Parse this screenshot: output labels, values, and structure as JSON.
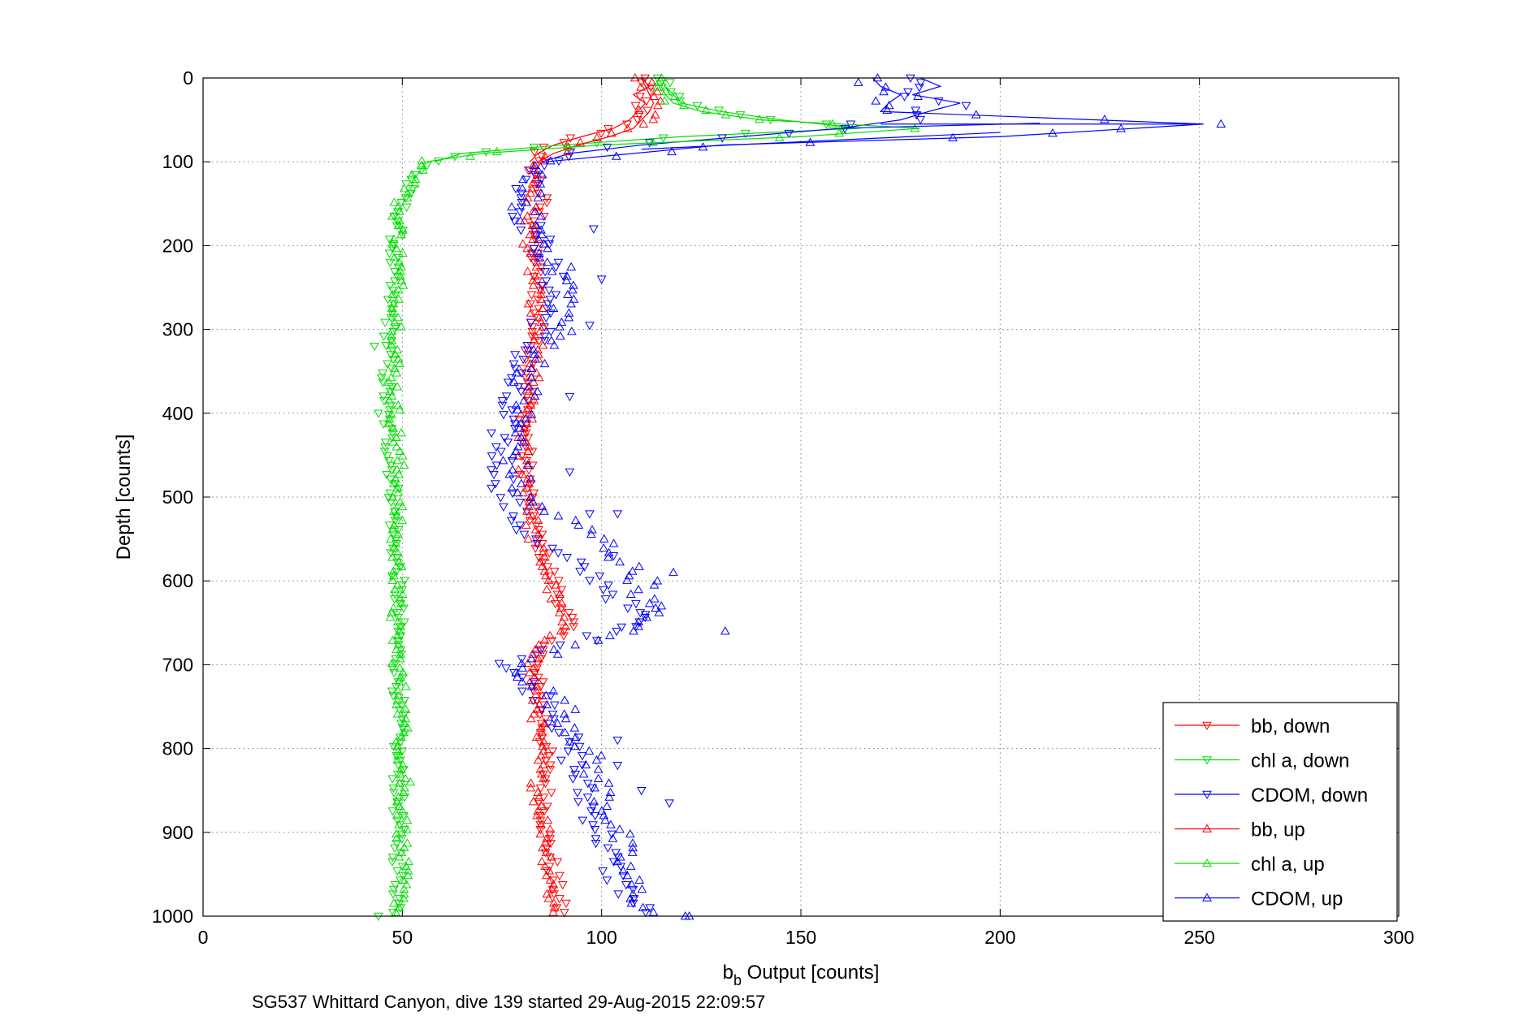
{
  "chart_data": {
    "type": "scatter",
    "xlabel_main": "b",
    "xlabel_sub": "b",
    "xlabel_rest": " Output [counts]",
    "ylabel": "Depth [counts]",
    "footer": "SG537 Whittard Canyon, dive 139 started 29-Aug-2015 22:09:57",
    "xlim": [
      0,
      300
    ],
    "ylim": [
      0,
      1000
    ],
    "y_reversed": true,
    "grid": true,
    "legend_position": "bottom-right",
    "xticks": [
      "0",
      "50",
      "100",
      "150",
      "200",
      "250",
      "300"
    ],
    "yticks": [
      "0",
      "100",
      "200",
      "300",
      "400",
      "500",
      "600",
      "700",
      "800",
      "900",
      "1000"
    ],
    "series": [
      {
        "name": "bb, down",
        "color": "#ff0000",
        "marker": "triangle-down",
        "line_until_depth": 100,
        "points": [
          [
            110,
            0
          ],
          [
            112,
            10
          ],
          [
            108,
            20
          ],
          [
            111,
            30
          ],
          [
            109,
            40
          ],
          [
            107,
            50
          ],
          [
            103,
            60
          ],
          [
            95,
            70
          ],
          [
            88,
            80
          ],
          [
            84,
            90
          ],
          [
            82,
            100
          ],
          [
            84,
            120
          ],
          [
            85,
            150
          ],
          [
            83,
            200
          ],
          [
            84,
            250
          ],
          [
            83,
            300
          ],
          [
            82,
            350
          ],
          [
            81,
            400
          ],
          [
            81,
            450
          ],
          [
            82,
            500
          ],
          [
            84,
            550
          ],
          [
            88,
            600
          ],
          [
            92,
            650
          ],
          [
            83,
            700
          ],
          [
            85,
            750
          ],
          [
            86,
            800
          ],
          [
            86,
            850
          ],
          [
            86,
            900
          ],
          [
            88,
            950
          ],
          [
            90,
            1000
          ]
        ]
      },
      {
        "name": "chl a, down",
        "color": "#00dd00",
        "marker": "triangle-down",
        "line_until_depth": 100,
        "points": [
          [
            115,
            0
          ],
          [
            116,
            10
          ],
          [
            118,
            20
          ],
          [
            120,
            30
          ],
          [
            130,
            40
          ],
          [
            145,
            50
          ],
          [
            165,
            60
          ],
          [
            120,
            70
          ],
          [
            90,
            80
          ],
          [
            65,
            90
          ],
          [
            58,
            100
          ],
          [
            52,
            120
          ],
          [
            50,
            150
          ],
          [
            48,
            200
          ],
          [
            47,
            250
          ],
          [
            47,
            300
          ],
          [
            46,
            350
          ],
          [
            46,
            400
          ],
          [
            47,
            450
          ],
          [
            48,
            500
          ],
          [
            48,
            550
          ],
          [
            49,
            600
          ],
          [
            49,
            650
          ],
          [
            49,
            700
          ],
          [
            49,
            750
          ],
          [
            49,
            800
          ],
          [
            49,
            850
          ],
          [
            49,
            900
          ],
          [
            49,
            950
          ],
          [
            49,
            1000
          ]
        ]
      },
      {
        "name": "CDOM, down",
        "color": "#0000ff",
        "marker": "triangle-down",
        "line_until_depth": 100,
        "points": [
          [
            180,
            0
          ],
          [
            185,
            10
          ],
          [
            178,
            20
          ],
          [
            190,
            30
          ],
          [
            182,
            40
          ],
          [
            175,
            50
          ],
          [
            160,
            60
          ],
          [
            135,
            70
          ],
          [
            110,
            80
          ],
          [
            92,
            90
          ],
          [
            85,
            100
          ],
          [
            82,
            130
          ],
          [
            80,
            160
          ],
          [
            85,
            200
          ],
          [
            88,
            250
          ],
          [
            85,
            300
          ],
          [
            78,
            350
          ],
          [
            75,
            400
          ],
          [
            75,
            450
          ],
          [
            76,
            500
          ],
          [
            82,
            550
          ],
          [
            100,
            600
          ],
          [
            110,
            650
          ],
          [
            76,
            700
          ],
          [
            88,
            750
          ],
          [
            92,
            800
          ],
          [
            95,
            850
          ],
          [
            100,
            900
          ],
          [
            103,
            950
          ],
          [
            111,
            1000
          ]
        ]
      },
      {
        "name": "bb, up",
        "color": "#ff0000",
        "marker": "triangle-up",
        "line_until_depth": 100,
        "points": [
          [
            88,
            1000
          ],
          [
            87,
            950
          ],
          [
            86,
            900
          ],
          [
            84,
            850
          ],
          [
            84,
            800
          ],
          [
            84,
            750
          ],
          [
            82,
            700
          ],
          [
            90,
            650
          ],
          [
            87,
            600
          ],
          [
            83,
            550
          ],
          [
            82,
            500
          ],
          [
            80,
            450
          ],
          [
            81,
            400
          ],
          [
            83,
            350
          ],
          [
            84,
            300
          ],
          [
            83,
            250
          ],
          [
            82,
            200
          ],
          [
            82,
            150
          ],
          [
            84,
            100
          ],
          [
            88,
            90
          ],
          [
            94,
            80
          ],
          [
            102,
            70
          ],
          [
            108,
            60
          ],
          [
            110,
            50
          ],
          [
            112,
            40
          ],
          [
            113,
            30
          ],
          [
            112,
            20
          ],
          [
            111,
            10
          ],
          [
            110,
            0
          ]
        ]
      },
      {
        "name": "chl a, up",
        "color": "#00dd00",
        "marker": "triangle-up",
        "line_until_depth": 100,
        "points": [
          [
            49,
            1000
          ],
          [
            50,
            950
          ],
          [
            50,
            900
          ],
          [
            50,
            850
          ],
          [
            50,
            800
          ],
          [
            50,
            750
          ],
          [
            49,
            700
          ],
          [
            48,
            650
          ],
          [
            49,
            600
          ],
          [
            48,
            550
          ],
          [
            49,
            500
          ],
          [
            49,
            450
          ],
          [
            48,
            400
          ],
          [
            48,
            350
          ],
          [
            49,
            300
          ],
          [
            49,
            250
          ],
          [
            49,
            200
          ],
          [
            49,
            150
          ],
          [
            56,
            100
          ],
          [
            70,
            90
          ],
          [
            100,
            80
          ],
          [
            150,
            70
          ],
          [
            180,
            60
          ],
          [
            140,
            50
          ],
          [
            125,
            40
          ],
          [
            118,
            30
          ],
          [
            116,
            20
          ],
          [
            115,
            10
          ],
          [
            116,
            0
          ]
        ]
      },
      {
        "name": "CDOM, up",
        "color": "#0000ff",
        "marker": "triangle-up",
        "line_until_depth": 100,
        "points": [
          [
            112,
            1000
          ],
          [
            106,
            950
          ],
          [
            104,
            900
          ],
          [
            100,
            850
          ],
          [
            96,
            800
          ],
          [
            90,
            750
          ],
          [
            78,
            700
          ],
          [
            112,
            650
          ],
          [
            110,
            600
          ],
          [
            100,
            550
          ],
          [
            80,
            500
          ],
          [
            78,
            450
          ],
          [
            80,
            400
          ],
          [
            82,
            350
          ],
          [
            90,
            300
          ],
          [
            92,
            250
          ],
          [
            86,
            200
          ],
          [
            80,
            150
          ],
          [
            86,
            100
          ],
          [
            130,
            80
          ],
          [
            200,
            70
          ],
          [
            251,
            55
          ],
          [
            170,
            40
          ],
          [
            172,
            30
          ],
          [
            175,
            20
          ],
          [
            170,
            10
          ],
          [
            168,
            0
          ]
        ]
      }
    ],
    "outliers": [
      {
        "series": "CDOM, down",
        "points": [
          [
            98,
            180
          ],
          [
            100,
            240
          ],
          [
            97,
            295
          ],
          [
            92,
            470
          ],
          [
            97,
            520
          ],
          [
            104,
            520
          ],
          [
            103,
            570
          ],
          [
            111,
            640
          ],
          [
            105,
            655
          ],
          [
            104,
            790
          ],
          [
            104,
            820
          ],
          [
            117,
            865
          ],
          [
            110,
            850
          ],
          [
            92,
            380
          ]
        ]
      },
      {
        "series": "CDOM, up",
        "points": [
          [
            131,
            660
          ],
          [
            121,
            1000
          ],
          [
            122,
            1000
          ],
          [
            114,
            600
          ],
          [
            115,
            630
          ],
          [
            118,
            590
          ]
        ]
      },
      {
        "series": "chl a, down",
        "points": [
          [
            44,
            1000
          ],
          [
            43,
            320
          ],
          [
            44,
            400
          ]
        ]
      },
      {
        "series": "chl a, up",
        "points": [
          [
            52,
            840
          ]
        ]
      }
    ]
  }
}
